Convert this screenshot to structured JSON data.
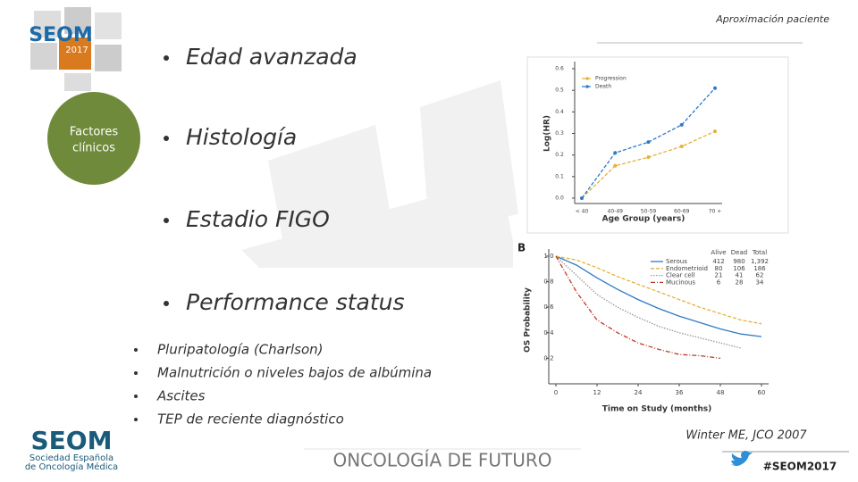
{
  "header": {
    "section": "Aproximación paciente"
  },
  "logo_badge": {
    "name": "SEOM",
    "year": "2017"
  },
  "badge": {
    "lines": [
      "Factores",
      "clínicos"
    ]
  },
  "bullets": [
    "Edad avanzada",
    "Histología",
    "Estadio FIGO",
    "Performance status"
  ],
  "sub_bullets": [
    "Pluripatología (Charlson)",
    "Malnutrición o niveles bajos de albúmina",
    "Ascites",
    "TEP de reciente diagnóstico"
  ],
  "citation": "Winter ME, JCO 2007",
  "footer": {
    "tagline": "ONCOLOGÍA DE FUTURO",
    "hashtag": "#SEOM2017",
    "logo": "SEOM",
    "society": [
      "Sociedad Española",
      "de Oncología Médica"
    ]
  },
  "chart_data": [
    {
      "type": "line",
      "y_label": "Log(HR)",
      "x_label": "Age Group (years)",
      "categories": [
        "< 40",
        "40-49",
        "50-59",
        "60-69",
        "70 +"
      ],
      "ylim": [
        0,
        0.6
      ],
      "yticks": [
        {
          "value": 0,
          "label": "0.0"
        },
        {
          "value": 0.1,
          "label": "0.1"
        },
        {
          "value": 0.2,
          "label": "0.2"
        },
        {
          "value": 0.3,
          "label": "0.3"
        },
        {
          "value": 0.4,
          "label": "0.4"
        },
        {
          "value": 0.5,
          "label": "0.5"
        },
        {
          "value": 0.6,
          "label": "0.6"
        }
      ],
      "markers": true,
      "series": [
        {
          "name": "Progression",
          "color": "#e3b23c",
          "line_style": "dashed",
          "values": [
            0,
            0.15,
            0.19,
            0.24,
            0.31
          ]
        },
        {
          "name": "Death",
          "color": "#2f79c7",
          "line_style": "dashed",
          "values": [
            0,
            0.21,
            0.26,
            0.34,
            0.51
          ]
        }
      ]
    },
    {
      "type": "line",
      "panel": "B",
      "y_label": "OS Probability",
      "x_label": "Time on Study (months)",
      "x": [
        0,
        6,
        12,
        18,
        24,
        30,
        36,
        42,
        48,
        54,
        60
      ],
      "xlim": [
        0,
        60
      ],
      "xticks": [
        0,
        12,
        24,
        36,
        48,
        60
      ],
      "ylim": [
        0,
        1
      ],
      "yticks": [
        {
          "value": 0.2,
          "label": "0.2"
        },
        {
          "value": 0.4,
          "label": "0.4"
        },
        {
          "value": 0.6,
          "label": "0.6"
        },
        {
          "value": 0.8,
          "label": "0.8"
        },
        {
          "value": 1,
          "label": "1.0"
        }
      ],
      "markers": false,
      "legend_table": {
        "header": [
          "Alive",
          "Dead",
          "Total"
        ],
        "rows": [
          [
            "412",
            "980",
            "1,392"
          ],
          [
            "80",
            "106",
            "186"
          ],
          [
            "21",
            "41",
            "62"
          ],
          [
            "6",
            "28",
            "34"
          ]
        ]
      },
      "series": [
        {
          "name": "Serous",
          "color": "#2f79c7",
          "line_style": "solid",
          "values": [
            1,
            0.93,
            0.83,
            0.74,
            0.66,
            0.59,
            0.53,
            0.48,
            0.43,
            0.39,
            0.37
          ]
        },
        {
          "name": "Endometrioid",
          "color": "#e3b23c",
          "line_style": "dashed",
          "values": [
            1,
            0.97,
            0.91,
            0.84,
            0.78,
            0.72,
            0.66,
            0.6,
            0.55,
            0.5,
            0.47
          ]
        },
        {
          "name": "Clear cell",
          "color": "#999999",
          "line_style": "dotted",
          "values": [
            1,
            0.85,
            0.7,
            0.6,
            0.52,
            0.45,
            0.4,
            0.36,
            0.32,
            0.28,
            null
          ]
        },
        {
          "name": "Mucinous",
          "color": "#c0392b",
          "line_style": "dashdot",
          "values": [
            1,
            0.72,
            0.5,
            0.4,
            0.32,
            0.27,
            0.23,
            0.22,
            0.2,
            null,
            null
          ]
        }
      ]
    }
  ]
}
